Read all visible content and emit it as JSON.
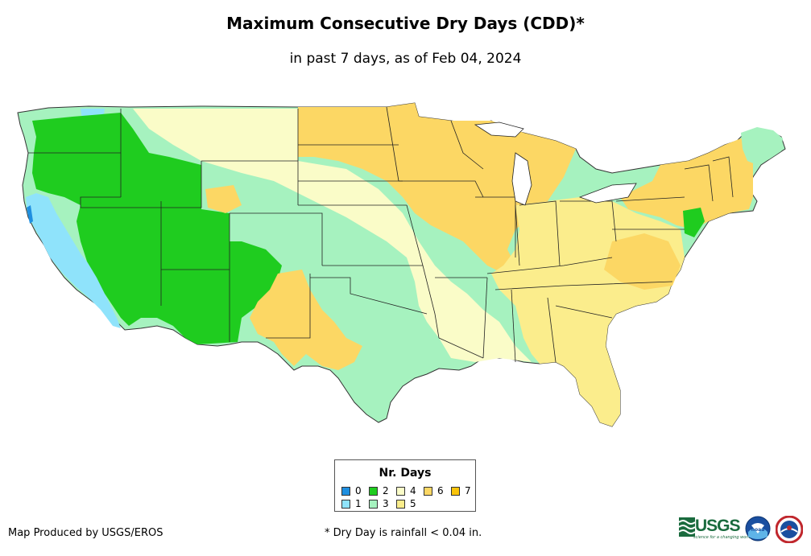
{
  "title": "Maximum Consecutive Dry Days (CDD)*",
  "subtitle": "in past 7 days, as of Feb 04, 2024",
  "legend": {
    "title": "Nr. Days",
    "items": [
      {
        "label": "0",
        "color": "#1f8fe0"
      },
      {
        "label": "1",
        "color": "#8fe3fb"
      },
      {
        "label": "2",
        "color": "#1fcc1f"
      },
      {
        "label": "3",
        "color": "#a6f2bf"
      },
      {
        "label": "4",
        "color": "#fafcc8"
      },
      {
        "label": "5",
        "color": "#fbed8c"
      },
      {
        "label": "6",
        "color": "#fcd764"
      },
      {
        "label": "7",
        "color": "#fac40a"
      }
    ]
  },
  "credit": "Map Produced by USGS/EROS",
  "footnote": "* Dry Day is rainfall < 0.04 in.",
  "logos": {
    "usgs": "USGS",
    "usgs_tagline": "science for a changing world",
    "noaa": "noaa",
    "nws_icon": "nws-seal-icon"
  }
}
